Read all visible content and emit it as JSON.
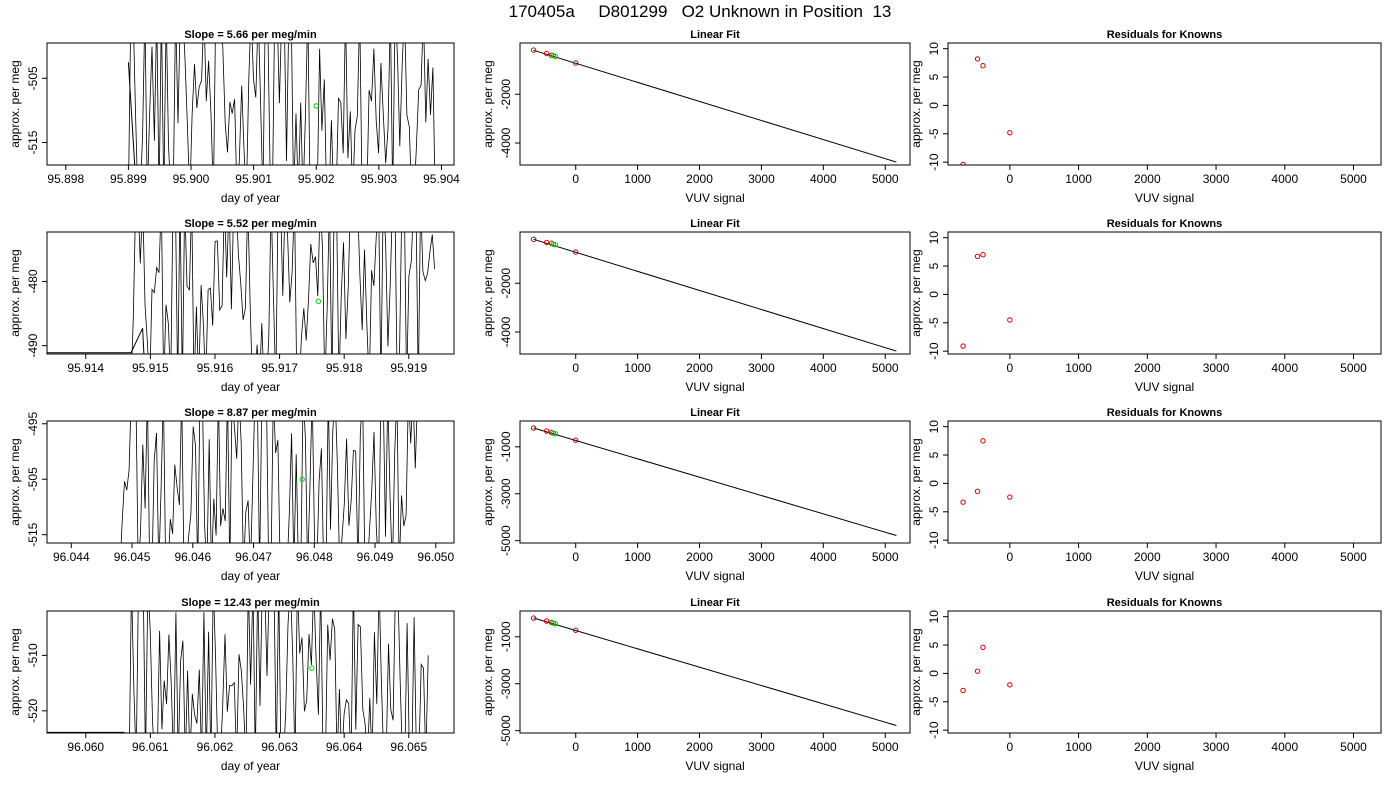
{
  "title": "170405a     D801299   O2 Unknown in Position  13",
  "colors": {
    "trace": "#000000",
    "known": "#cc0000",
    "unknown": "#00cc00",
    "axis": "#000000"
  },
  "chart_data": [
    {
      "type": "line",
      "row": 1,
      "panel": "trace",
      "title": "Slope =  5.66  per meg/min",
      "xlabel": "day of year",
      "ylabel": "approx. per meg",
      "xlim": [
        95.8977,
        95.9042
      ],
      "ylim": [
        -518.5,
        -499.5
      ],
      "xticks": [
        "95.898",
        "95.899",
        "95.900",
        "95.901",
        "95.902",
        "95.903",
        "95.904"
      ],
      "yticks": [
        "-505",
        "-515"
      ],
      "trace": {
        "start": 95.899,
        "end": 95.9039,
        "min": -518.5,
        "max": -499.5,
        "pre": [
          [
            95.899,
            -502.5
          ],
          [
            95.8991,
            -518.5
          ]
        ]
      },
      "marker": {
        "x": 95.902,
        "y": -509.3
      }
    },
    {
      "type": "scatter",
      "row": 1,
      "panel": "fit",
      "title": "Linear Fit",
      "xlabel": "VUV signal",
      "ylabel": "approx. per meg",
      "xlim": [
        -900,
        5400
      ],
      "ylim": [
        -4900,
        100
      ],
      "xticks": [
        "0",
        "1000",
        "2000",
        "3000",
        "4000",
        "5000"
      ],
      "yticks": [
        "-2000",
        "-4000"
      ],
      "line": [
        [
          -680,
          -200
        ],
        [
          5180,
          -4780
        ]
      ],
      "known": [
        [
          -680,
          -190
        ],
        [
          -470,
          -330
        ],
        [
          -390,
          -400
        ],
        [
          0,
          -720
        ]
      ],
      "unknown": [
        [
          -360,
          -420
        ],
        [
          -330,
          -450
        ]
      ]
    },
    {
      "type": "scatter",
      "row": 1,
      "panel": "residuals",
      "title": "Residuals for Knowns",
      "xlabel": "VUV signal",
      "ylabel": "approx. per meg",
      "xlim": [
        -900,
        5400
      ],
      "ylim": [
        -10.5,
        11
      ],
      "xticks": [
        "0",
        "1000",
        "2000",
        "3000",
        "4000",
        "5000"
      ],
      "yticks": [
        "-10",
        "-5",
        "0",
        "5",
        "10"
      ],
      "points": [
        [
          -680,
          -10.4
        ],
        [
          -470,
          8.2
        ],
        [
          -390,
          7.0
        ],
        [
          0,
          -4.8
        ]
      ]
    },
    {
      "type": "line",
      "row": 2,
      "panel": "trace",
      "title": "Slope =  5.52  per meg/min",
      "xlabel": "day of year",
      "ylabel": "approx. per meg",
      "xlim": [
        95.9134,
        95.9197
      ],
      "ylim": [
        -491.3,
        -472.3
      ],
      "xticks": [
        "95.914",
        "95.915",
        "95.916",
        "95.917",
        "95.918",
        "95.919"
      ],
      "yticks": [
        "-480",
        "-490"
      ],
      "trace": {
        "start": 95.9147,
        "end": 95.9194,
        "min": -491.3,
        "max": -472.3,
        "pre": [
          [
            95.9134,
            -491.1
          ],
          [
            95.9147,
            -491.1
          ],
          [
            95.91488,
            -487.3
          ],
          [
            95.9149,
            -491.3
          ]
        ]
      },
      "marker": {
        "x": 95.9176,
        "y": -483.1
      }
    },
    {
      "type": "scatter",
      "row": 2,
      "panel": "fit",
      "title": "Linear Fit",
      "xlabel": "VUV signal",
      "ylabel": "approx. per meg",
      "xlim": [
        -900,
        5400
      ],
      "ylim": [
        -4900,
        100
      ],
      "xticks": [
        "0",
        "1000",
        "2000",
        "3000",
        "4000",
        "5000"
      ],
      "yticks": [
        "-2000",
        "-4000"
      ],
      "line": [
        [
          -680,
          -200
        ],
        [
          5180,
          -4780
        ]
      ],
      "known": [
        [
          -680,
          -200
        ],
        [
          -470,
          -330
        ],
        [
          -390,
          -360
        ],
        [
          0,
          -720
        ]
      ],
      "unknown": [
        [
          -360,
          -400
        ],
        [
          -330,
          -420
        ]
      ]
    },
    {
      "type": "scatter",
      "row": 2,
      "panel": "residuals",
      "title": "Residuals for Knowns",
      "xlabel": "VUV signal",
      "ylabel": "approx. per meg",
      "xlim": [
        -900,
        5400
      ],
      "ylim": [
        -10.5,
        11
      ],
      "xticks": [
        "0",
        "1000",
        "2000",
        "3000",
        "4000",
        "5000"
      ],
      "yticks": [
        "-10",
        "-5",
        "0",
        "5",
        "10"
      ],
      "points": [
        [
          -680,
          -9.1
        ],
        [
          -470,
          6.7
        ],
        [
          -390,
          7.0
        ],
        [
          0,
          -4.5
        ]
      ]
    },
    {
      "type": "line",
      "row": 3,
      "panel": "trace",
      "title": "Slope =  8.87  per meg/min",
      "xlabel": "day of year",
      "ylabel": "approx. per meg",
      "xlim": [
        96.0436,
        96.0503
      ],
      "ylim": [
        -516.5,
        -494.5
      ],
      "xticks": [
        "96.044",
        "96.045",
        "96.046",
        "96.047",
        "96.048",
        "96.049",
        "96.050"
      ],
      "yticks": [
        "-495",
        "-505",
        "-515"
      ],
      "trace": {
        "start": 96.0448,
        "end": 96.0497,
        "min": -516.5,
        "max": -494.5,
        "pre": []
      },
      "marker": {
        "x": 96.0478,
        "y": -505.0
      }
    },
    {
      "type": "scatter",
      "row": 3,
      "panel": "fit",
      "title": "Linear Fit",
      "xlabel": "VUV signal",
      "ylabel": "approx. per meg",
      "xlim": [
        -900,
        5400
      ],
      "ylim": [
        -5100,
        100
      ],
      "xticks": [
        "0",
        "1000",
        "2000",
        "3000",
        "4000",
        "5000"
      ],
      "yticks": [
        "-1000",
        "-3000",
        "-5000"
      ],
      "line": [
        [
          -680,
          -200
        ],
        [
          5180,
          -4780
        ]
      ],
      "known": [
        [
          -680,
          -200
        ],
        [
          -470,
          -330
        ],
        [
          -390,
          -390
        ],
        [
          0,
          -720
        ]
      ],
      "unknown": [
        [
          -360,
          -420
        ],
        [
          -330,
          -440
        ]
      ]
    },
    {
      "type": "scatter",
      "row": 3,
      "panel": "residuals",
      "title": "Residuals for Knowns",
      "xlabel": "VUV signal",
      "ylabel": "approx. per meg",
      "xlim": [
        -900,
        5400
      ],
      "ylim": [
        -10.5,
        11
      ],
      "xticks": [
        "0",
        "1000",
        "2000",
        "3000",
        "4000",
        "5000"
      ],
      "yticks": [
        "-10",
        "-5",
        "0",
        "5",
        "10"
      ],
      "points": [
        [
          -680,
          -3.3
        ],
        [
          -470,
          -1.4
        ],
        [
          -390,
          7.5
        ],
        [
          0,
          -2.4
        ]
      ]
    },
    {
      "type": "line",
      "row": 4,
      "panel": "trace",
      "title": "Slope =  12.43  per meg/min",
      "xlabel": "day of year",
      "ylabel": "approx. per meg",
      "xlim": [
        96.0594,
        96.0657
      ],
      "ylim": [
        -524,
        -502
      ],
      "xticks": [
        "96.060",
        "96.061",
        "96.062",
        "96.063",
        "96.064",
        "96.065"
      ],
      "yticks": [
        "-510",
        "-520"
      ],
      "trace": {
        "start": 96.0606,
        "end": 96.0653,
        "min": -524,
        "max": -502,
        "pre": [
          [
            96.0594,
            -523.9
          ],
          [
            96.0606,
            -523.9
          ]
        ]
      },
      "marker": {
        "x": 96.0635,
        "y": -512.3
      }
    },
    {
      "type": "scatter",
      "row": 4,
      "panel": "fit",
      "title": "Linear Fit",
      "xlabel": "VUV signal",
      "ylabel": "approx. per meg",
      "xlim": [
        -900,
        5400
      ],
      "ylim": [
        -5100,
        100
      ],
      "xticks": [
        "0",
        "1000",
        "2000",
        "3000",
        "4000",
        "5000"
      ],
      "yticks": [
        "-1000",
        "-3000",
        "-5000"
      ],
      "line": [
        [
          -680,
          -200
        ],
        [
          5180,
          -4780
        ]
      ],
      "known": [
        [
          -680,
          -200
        ],
        [
          -470,
          -330
        ],
        [
          -390,
          -390
        ],
        [
          0,
          -720
        ]
      ],
      "unknown": [
        [
          -360,
          -420
        ],
        [
          -330,
          -440
        ]
      ]
    },
    {
      "type": "scatter",
      "row": 4,
      "panel": "residuals",
      "title": "Residuals for Knowns",
      "xlabel": "VUV signal",
      "ylabel": "approx. per meg",
      "xlim": [
        -900,
        5400
      ],
      "ylim": [
        -10.5,
        11
      ],
      "xticks": [
        "0",
        "1000",
        "2000",
        "3000",
        "4000",
        "5000"
      ],
      "yticks": [
        "-10",
        "-5",
        "0",
        "5",
        "10"
      ],
      "points": [
        [
          -680,
          -3.0
        ],
        [
          -470,
          0.4
        ],
        [
          -390,
          4.6
        ],
        [
          0,
          -2.0
        ]
      ]
    }
  ]
}
